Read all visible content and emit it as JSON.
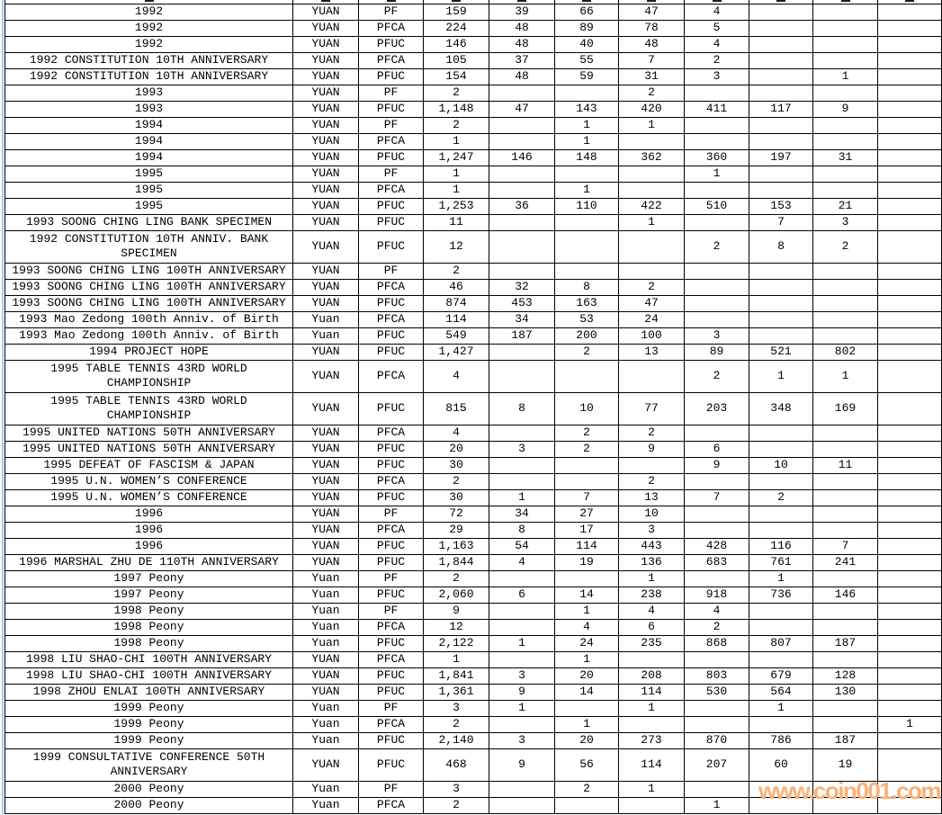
{
  "table": {
    "rows": [
      {
        "description": "1992",
        "unit": "YUAN",
        "type": "PF",
        "values": [
          "159",
          "39",
          "66",
          "47",
          "4",
          "",
          "",
          ""
        ],
        "tall": false
      },
      {
        "description": "1992",
        "unit": "YUAN",
        "type": "PFCA",
        "values": [
          "224",
          "48",
          "89",
          "78",
          "5",
          "",
          "",
          ""
        ],
        "tall": false
      },
      {
        "description": "1992",
        "unit": "YUAN",
        "type": "PFUC",
        "values": [
          "146",
          "48",
          "40",
          "48",
          "4",
          "",
          "",
          ""
        ],
        "tall": false
      },
      {
        "description": "1992 CONSTITUTION 10TH ANNIVERSARY",
        "unit": "YUAN",
        "type": "PFCA",
        "values": [
          "105",
          "37",
          "55",
          "7",
          "2",
          "",
          "",
          ""
        ],
        "tall": false
      },
      {
        "description": "1992 CONSTITUTION 10TH ANNIVERSARY",
        "unit": "YUAN",
        "type": "PFUC",
        "values": [
          "154",
          "48",
          "59",
          "31",
          "3",
          "",
          "1",
          ""
        ],
        "tall": false
      },
      {
        "description": "1993",
        "unit": "YUAN",
        "type": "PF",
        "values": [
          "2",
          "",
          "",
          "2",
          "",
          "",
          "",
          ""
        ],
        "tall": false
      },
      {
        "description": "1993",
        "unit": "YUAN",
        "type": "PFUC",
        "values": [
          "1,148",
          "47",
          "143",
          "420",
          "411",
          "117",
          "9",
          ""
        ],
        "tall": false
      },
      {
        "description": "1994",
        "unit": "YUAN",
        "type": "PF",
        "values": [
          "2",
          "",
          "1",
          "1",
          "",
          "",
          "",
          ""
        ],
        "tall": false
      },
      {
        "description": "1994",
        "unit": "YUAN",
        "type": "PFCA",
        "values": [
          "1",
          "",
          "1",
          "",
          "",
          "",
          "",
          ""
        ],
        "tall": false
      },
      {
        "description": "1994",
        "unit": "YUAN",
        "type": "PFUC",
        "values": [
          "1,247",
          "146",
          "148",
          "362",
          "360",
          "197",
          "31",
          ""
        ],
        "tall": false
      },
      {
        "description": "1995",
        "unit": "YUAN",
        "type": "PF",
        "values": [
          "1",
          "",
          "",
          "",
          "1",
          "",
          "",
          ""
        ],
        "tall": false
      },
      {
        "description": "1995",
        "unit": "YUAN",
        "type": "PFCA",
        "values": [
          "1",
          "",
          "1",
          "",
          "",
          "",
          "",
          ""
        ],
        "tall": false
      },
      {
        "description": "1995",
        "unit": "YUAN",
        "type": "PFUC",
        "values": [
          "1,253",
          "36",
          "110",
          "422",
          "510",
          "153",
          "21",
          ""
        ],
        "tall": false
      },
      {
        "description": "1993 SOONG CHING LING BANK SPECIMEN",
        "unit": "YUAN",
        "type": "PFUC",
        "values": [
          "11",
          "",
          "",
          "1",
          "",
          "7",
          "3",
          ""
        ],
        "tall": false
      },
      {
        "description": "1992 CONSTITUTION 10TH ANNIV. BANK SPECIMEN",
        "unit": "YUAN",
        "type": "PFUC",
        "values": [
          "12",
          "",
          "",
          "",
          "2",
          "8",
          "2",
          ""
        ],
        "tall": true
      },
      {
        "description": "1993 SOONG CHING LING 100TH ANNIVERSARY",
        "unit": "YUAN",
        "type": "PF",
        "values": [
          "2",
          "",
          "",
          "",
          "",
          "",
          "",
          ""
        ],
        "tall": false
      },
      {
        "description": "1993 SOONG CHING LING 100TH ANNIVERSARY",
        "unit": "YUAN",
        "type": "PFCA",
        "values": [
          "46",
          "32",
          "8",
          "2",
          "",
          "",
          "",
          ""
        ],
        "tall": false
      },
      {
        "description": "1993 SOONG CHING LING 100TH ANNIVERSARY",
        "unit": "YUAN",
        "type": "PFUC",
        "values": [
          "874",
          "453",
          "163",
          "47",
          "",
          "",
          "",
          ""
        ],
        "tall": false
      },
      {
        "description": "1993 Mao Zedong 100th Anniv. of Birth",
        "unit": "Yuan",
        "type": "PFCA",
        "values": [
          "114",
          "34",
          "53",
          "24",
          "",
          "",
          "",
          ""
        ],
        "tall": false
      },
      {
        "description": "1993 Mao Zedong 100th Anniv. of Birth",
        "unit": "Yuan",
        "type": "PFUC",
        "values": [
          "549",
          "187",
          "200",
          "100",
          "3",
          "",
          "",
          ""
        ],
        "tall": false
      },
      {
        "description": "1994 PROJECT HOPE",
        "unit": "YUAN",
        "type": "PFUC",
        "values": [
          "1,427",
          "",
          "2",
          "13",
          "89",
          "521",
          "802",
          ""
        ],
        "tall": false
      },
      {
        "description": "1995 TABLE TENNIS 43RD WORLD CHAMPIONSHIP",
        "unit": "YUAN",
        "type": "PFCA",
        "values": [
          "4",
          "",
          "",
          "",
          "2",
          "1",
          "1",
          ""
        ],
        "tall": true
      },
      {
        "description": "1995 TABLE TENNIS 43RD WORLD CHAMPIONSHIP",
        "unit": "YUAN",
        "type": "PFUC",
        "values": [
          "815",
          "8",
          "10",
          "77",
          "203",
          "348",
          "169",
          ""
        ],
        "tall": true
      },
      {
        "description": "1995 UNITED NATIONS 50TH ANNIVERSARY",
        "unit": "YUAN",
        "type": "PFCA",
        "values": [
          "4",
          "",
          "2",
          "2",
          "",
          "",
          "",
          ""
        ],
        "tall": false
      },
      {
        "description": "1995 UNITED NATIONS 50TH ANNIVERSARY",
        "unit": "YUAN",
        "type": "PFUC",
        "values": [
          "20",
          "3",
          "2",
          "9",
          "6",
          "",
          "",
          ""
        ],
        "tall": false
      },
      {
        "description": "1995 DEFEAT OF FASCISM & JAPAN",
        "unit": "YUAN",
        "type": "PFUC",
        "values": [
          "30",
          "",
          "",
          "",
          "9",
          "10",
          "11",
          ""
        ],
        "tall": false
      },
      {
        "description": "1995 U.N. WOMEN’S CONFERENCE",
        "unit": "YUAN",
        "type": "PFCA",
        "values": [
          "2",
          "",
          "",
          "2",
          "",
          "",
          "",
          ""
        ],
        "tall": false
      },
      {
        "description": "1995 U.N. WOMEN’S CONFERENCE",
        "unit": "YUAN",
        "type": "PFUC",
        "values": [
          "30",
          "1",
          "7",
          "13",
          "7",
          "2",
          "",
          ""
        ],
        "tall": false
      },
      {
        "description": "1996",
        "unit": "YUAN",
        "type": "PF",
        "values": [
          "72",
          "34",
          "27",
          "10",
          "",
          "",
          "",
          ""
        ],
        "tall": false
      },
      {
        "description": "1996",
        "unit": "YUAN",
        "type": "PFCA",
        "values": [
          "29",
          "8",
          "17",
          "3",
          "",
          "",
          "",
          ""
        ],
        "tall": false
      },
      {
        "description": "1996",
        "unit": "YUAN",
        "type": "PFUC",
        "values": [
          "1,163",
          "54",
          "114",
          "443",
          "428",
          "116",
          "7",
          ""
        ],
        "tall": false
      },
      {
        "description": "1996 MARSHAL ZHU DE 110TH ANNIVERSARY",
        "unit": "YUAN",
        "type": "PFUC",
        "values": [
          "1,844",
          "4",
          "19",
          "136",
          "683",
          "761",
          "241",
          ""
        ],
        "tall": false
      },
      {
        "description": "1997 Peony",
        "unit": "Yuan",
        "type": "PF",
        "values": [
          "2",
          "",
          "",
          "1",
          "",
          "1",
          "",
          ""
        ],
        "tall": false
      },
      {
        "description": "1997 Peony",
        "unit": "Yuan",
        "type": "PFUC",
        "values": [
          "2,060",
          "6",
          "14",
          "238",
          "918",
          "736",
          "146",
          ""
        ],
        "tall": false
      },
      {
        "description": "1998 Peony",
        "unit": "Yuan",
        "type": "PF",
        "values": [
          "9",
          "",
          "1",
          "4",
          "4",
          "",
          "",
          ""
        ],
        "tall": false
      },
      {
        "description": "1998 Peony",
        "unit": "Yuan",
        "type": "PFCA",
        "values": [
          "12",
          "",
          "4",
          "6",
          "2",
          "",
          "",
          ""
        ],
        "tall": false
      },
      {
        "description": "1998 Peony",
        "unit": "Yuan",
        "type": "PFUC",
        "values": [
          "2,122",
          "1",
          "24",
          "235",
          "868",
          "807",
          "187",
          ""
        ],
        "tall": false
      },
      {
        "description": "1998 LIU SHAO-CHI 100TH ANNIVERSARY",
        "unit": "YUAN",
        "type": "PFCA",
        "values": [
          "1",
          "",
          "1",
          "",
          "",
          "",
          "",
          ""
        ],
        "tall": false
      },
      {
        "description": "1998 LIU SHAO-CHI 100TH ANNIVERSARY",
        "unit": "YUAN",
        "type": "PFUC",
        "values": [
          "1,841",
          "3",
          "20",
          "208",
          "803",
          "679",
          "128",
          ""
        ],
        "tall": false
      },
      {
        "description": "1998 ZHOU ENLAI 100TH ANNIVERSARY",
        "unit": "YUAN",
        "type": "PFUC",
        "values": [
          "1,361",
          "9",
          "14",
          "114",
          "530",
          "564",
          "130",
          ""
        ],
        "tall": false
      },
      {
        "description": "1999 Peony",
        "unit": "Yuan",
        "type": "PF",
        "values": [
          "3",
          "1",
          "",
          "1",
          "",
          "1",
          "",
          ""
        ],
        "tall": false
      },
      {
        "description": "1999 Peony",
        "unit": "Yuan",
        "type": "PFCA",
        "values": [
          "2",
          "",
          "1",
          "",
          "",
          "",
          "",
          "1"
        ],
        "tall": false
      },
      {
        "description": "1999 Peony",
        "unit": "Yuan",
        "type": "PFUC",
        "values": [
          "2,140",
          "3",
          "20",
          "273",
          "870",
          "786",
          "187",
          ""
        ],
        "tall": false
      },
      {
        "description": "1999 CONSULTATIVE CONFERENCE 50TH ANNIVERSARY",
        "unit": "YUAN",
        "type": "PFUC",
        "values": [
          "468",
          "9",
          "56",
          "114",
          "207",
          "60",
          "19",
          ""
        ],
        "tall": true
      },
      {
        "description": "2000 Peony",
        "unit": "Yuan",
        "type": "PF",
        "values": [
          "3",
          "",
          "2",
          "1",
          "",
          "",
          "",
          ""
        ],
        "tall": false
      },
      {
        "description": "2000 Peony",
        "unit": "Yuan",
        "type": "PFCA",
        "values": [
          "2",
          "",
          "",
          "",
          "1",
          "",
          "",
          ""
        ],
        "tall": false
      }
    ]
  },
  "watermark": {
    "text": "www.coin001.com",
    "color": "#fbb076"
  }
}
